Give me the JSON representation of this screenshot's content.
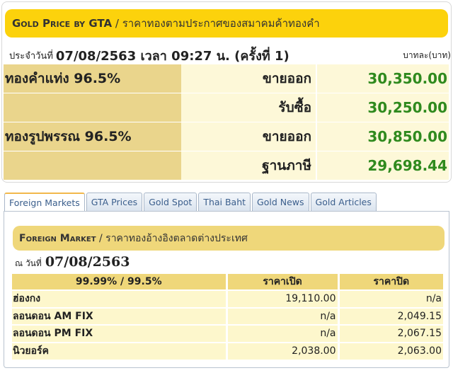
{
  "gta": {
    "title_en": "Gold Price by GTA",
    "title_sep": " / ",
    "title_th": "ราคาทองตามประกาศของสมาคมค้าทองคำ",
    "date_prefix": "ประจำวันที่",
    "date": "07/08/2563 เวลา 09:27 น. (ครั้งที่ 1)",
    "unit": "บาทละ(บาท)",
    "rows": [
      {
        "item": "ทองคำแท่ง 96.5%",
        "type": "ขายออก",
        "price": "30,350.00"
      },
      {
        "item": "",
        "type": "รับซื้อ",
        "price": "30,250.00"
      },
      {
        "item": "ทองรูปพรรณ 96.5%",
        "type": "ขายออก",
        "price": "30,850.00"
      },
      {
        "item": "",
        "type": "ฐานภาษี",
        "price": "29,698.44"
      }
    ]
  },
  "tabs": [
    "Foreign Markets",
    "GTA Prices",
    "Gold Spot",
    "Thai Baht",
    "Gold News",
    "Gold Articles"
  ],
  "foreign": {
    "title_en": "Foreign Market",
    "title_sep": " / ",
    "title_th": "ราคาทองอ้างอิงตลาดต่างประเทศ",
    "date_prefix": "ณ วันที่",
    "date": "07/08/2563",
    "headers": [
      "99.99% / 99.5%",
      "ราคาเปิด",
      "ราคาปิด"
    ],
    "rows": [
      [
        "ฮ่องกง",
        "19,110.00",
        "n/a"
      ],
      [
        "ลอนดอน AM FIX",
        "n/a",
        "2,049.15"
      ],
      [
        "ลอนดอน PM FIX",
        "n/a",
        "2,067.15"
      ],
      [
        "นิวยอร์ค",
        "2,038.00",
        "2,063.00"
      ]
    ]
  },
  "colors": {
    "header_yellow": "#fcd20c",
    "price_green": "#2f8a1e",
    "label_tan": "#ead58c"
  }
}
